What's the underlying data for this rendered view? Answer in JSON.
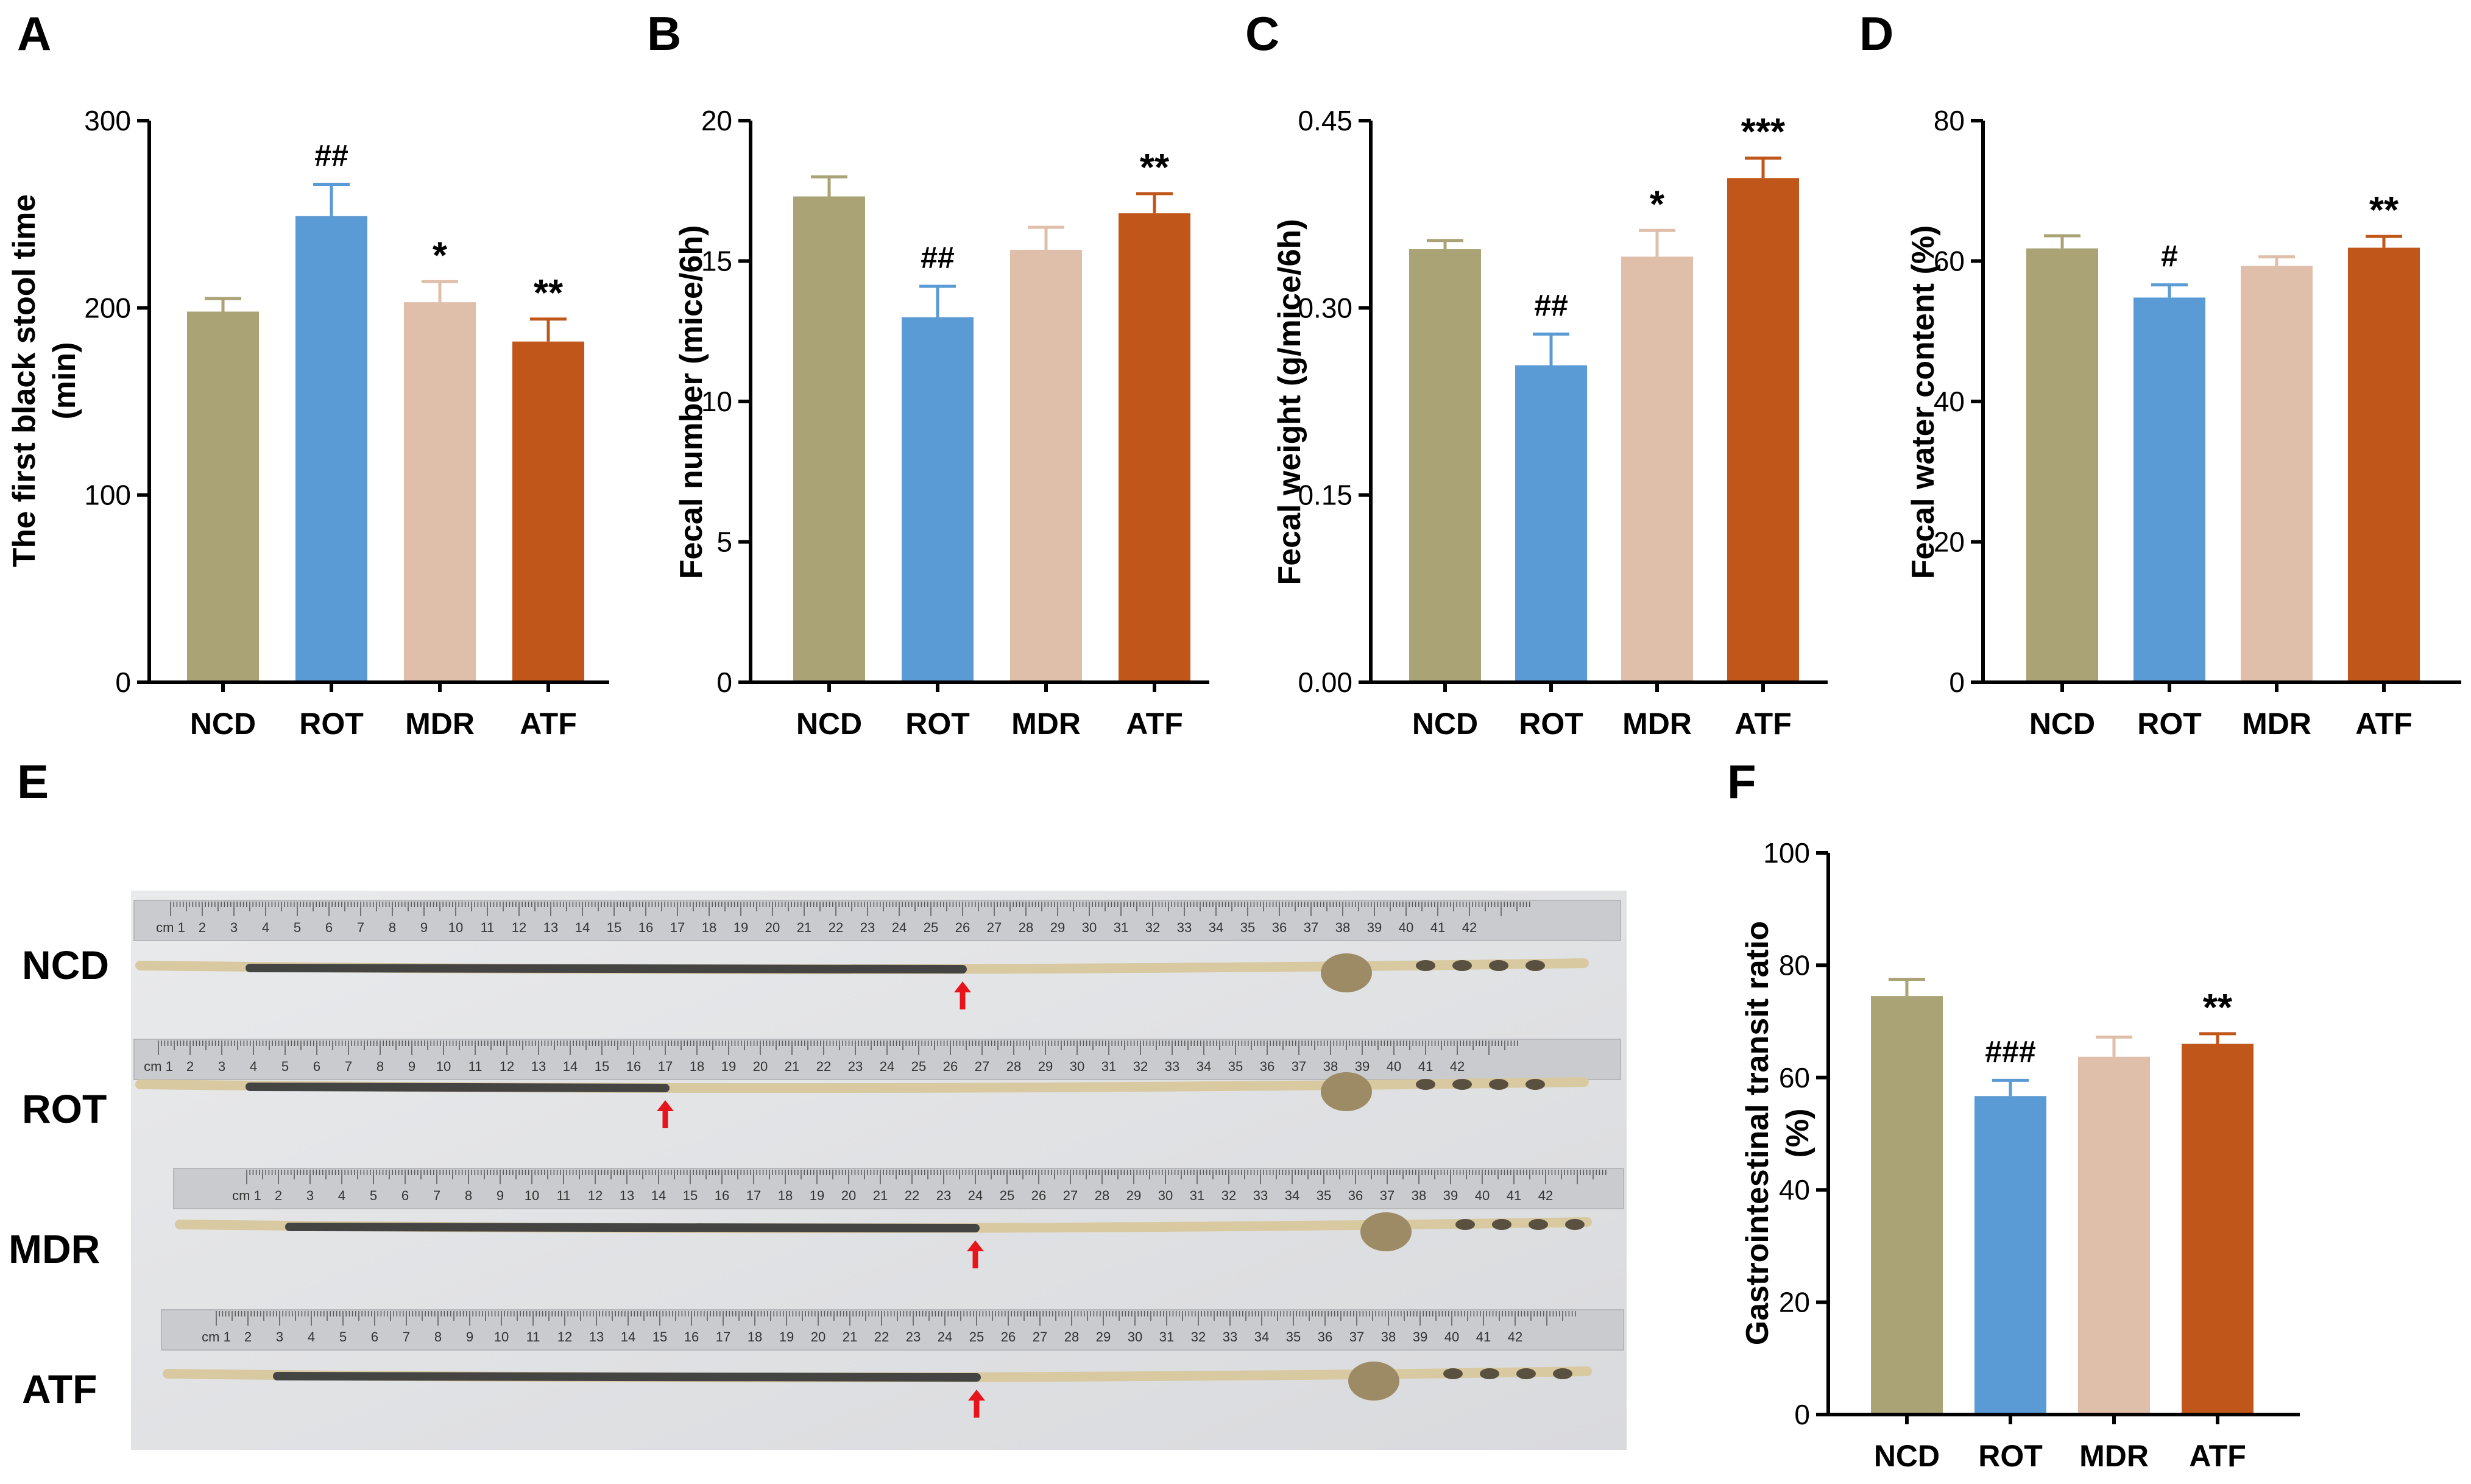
{
  "colors": {
    "NCD": "#a9a375",
    "ROT": "#5b9bd5",
    "MDR": "#dfbfaa",
    "ATF": "#c0561a",
    "ROT_err": "#5b9bd5"
  },
  "chart_data": [
    {
      "panel": "A",
      "type": "bar",
      "categories": [
        "NCD",
        "ROT",
        "MDR",
        "ATF"
      ],
      "values": [
        198,
        249,
        203,
        182
      ],
      "errors": [
        7,
        17,
        11,
        12
      ],
      "significance": [
        "",
        "##",
        "*",
        "**"
      ],
      "ylim": [
        0,
        300
      ],
      "yticks": [
        0,
        100,
        200,
        300
      ],
      "ytick_labels": [
        "0",
        "100",
        "200",
        "300"
      ],
      "ylabel_lines": [
        "The first black stool time",
        "(min)"
      ]
    },
    {
      "panel": "B",
      "type": "bar",
      "categories": [
        "NCD",
        "ROT",
        "MDR",
        "ATF"
      ],
      "values": [
        17.3,
        13.0,
        15.4,
        16.7
      ],
      "errors": [
        0.7,
        1.1,
        0.8,
        0.7
      ],
      "significance": [
        "",
        "##",
        "",
        "**"
      ],
      "ylim": [
        0,
        20
      ],
      "yticks": [
        0,
        5,
        10,
        15,
        20
      ],
      "ytick_labels": [
        "0",
        "5",
        "10",
        "15",
        "20"
      ],
      "ylabel_lines": [
        "Fecal number  (mice/6h)"
      ]
    },
    {
      "panel": "C",
      "type": "bar",
      "categories": [
        "NCD",
        "ROT",
        "MDR",
        "ATF"
      ],
      "values": [
        0.347,
        0.254,
        0.341,
        0.404
      ],
      "errors": [
        0.007,
        0.025,
        0.021,
        0.016
      ],
      "significance": [
        "",
        "##",
        "*",
        "***"
      ],
      "ylim": [
        0,
        0.45
      ],
      "yticks": [
        0,
        0.15,
        0.3,
        0.45
      ],
      "ytick_labels": [
        "0.00",
        "0.15",
        "0.30",
        "0.45"
      ],
      "ylabel_lines": [
        "Fecal weight  (g/mice/6h)"
      ]
    },
    {
      "panel": "D",
      "type": "bar",
      "categories": [
        "NCD",
        "ROT",
        "MDR",
        "ATF"
      ],
      "values": [
        61.8,
        54.8,
        59.3,
        61.9
      ],
      "errors": [
        1.8,
        1.8,
        1.3,
        1.6
      ],
      "significance": [
        "",
        "#",
        "",
        "**"
      ],
      "ylim": [
        0,
        80
      ],
      "yticks": [
        0,
        20,
        40,
        60,
        80
      ],
      "ytick_labels": [
        "0",
        "20",
        "40",
        "60",
        "80"
      ],
      "ylabel_lines": [
        "Fecal water  content (%)"
      ]
    },
    {
      "panel": "F",
      "type": "bar",
      "categories": [
        "NCD",
        "ROT",
        "MDR",
        "ATF"
      ],
      "values": [
        74.5,
        56.7,
        63.7,
        66.0
      ],
      "errors": [
        3.0,
        2.8,
        3.5,
        1.8
      ],
      "significance": [
        "",
        "###",
        "",
        "**"
      ],
      "ylim": [
        0,
        100
      ],
      "yticks": [
        0,
        20,
        40,
        60,
        80,
        100
      ],
      "ytick_labels": [
        "0",
        "20",
        "40",
        "60",
        "80",
        "100"
      ],
      "ylabel_lines": [
        "Gastrointestinal  transit ratio",
        "(%)"
      ]
    }
  ],
  "photo": {
    "panel": "E",
    "rows": [
      "NCD",
      "ROT",
      "MDR",
      "ATF"
    ],
    "ruler_numbers": [
      "cm 1",
      "2",
      "3",
      "4",
      "5",
      "6",
      "7",
      "8",
      "9",
      "10",
      "11",
      "12",
      "13",
      "14",
      "15",
      "16",
      "17",
      "18",
      "19",
      "20",
      "21",
      "22",
      "23",
      "24",
      "25",
      "26",
      "27",
      "28",
      "29",
      "30",
      "31",
      "32",
      "33",
      "34",
      "35",
      "36",
      "37",
      "38",
      "39",
      "40",
      "41",
      "42"
    ],
    "ink_front_cm": [
      26,
      17,
      24,
      25
    ]
  }
}
